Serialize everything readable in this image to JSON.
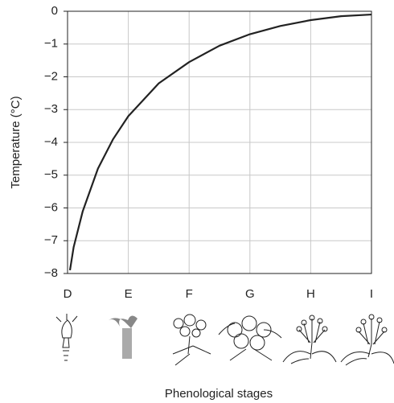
{
  "chart_data": {
    "type": "line",
    "y_label": "Temperature (°C)",
    "x_label": "Phenological stages",
    "x": [
      0.04,
      0.1,
      0.25,
      0.5,
      0.75,
      1,
      1.5,
      2,
      2.5,
      3,
      3.5,
      4,
      4.5,
      5
    ],
    "series": [
      {
        "color": "#222222",
        "values": [
          -7.9,
          -7.2,
          -6.1,
          -4.8,
          -3.9,
          -3.2,
          -2.2,
          -1.55,
          -1.05,
          -0.7,
          -0.45,
          -0.27,
          -0.15,
          -0.1
        ]
      }
    ],
    "xlim": [
      0,
      5
    ],
    "xticks": [
      {
        "value": 0,
        "label": "D"
      },
      {
        "value": 1,
        "label": "E"
      },
      {
        "value": 2,
        "label": "F"
      },
      {
        "value": 3,
        "label": "G"
      },
      {
        "value": 4,
        "label": "H"
      },
      {
        "value": 5,
        "label": "I"
      }
    ],
    "ylim": [
      -8,
      0
    ],
    "yticks": [
      0,
      {
        "value": -1,
        "label": "−1"
      },
      {
        "value": -2,
        "label": "−2"
      },
      {
        "value": -3,
        "label": "−3"
      },
      {
        "value": -4,
        "label": "−4"
      },
      {
        "value": -5,
        "label": "−5"
      },
      {
        "value": -6,
        "label": "−6"
      },
      {
        "value": -7,
        "label": "−7"
      },
      {
        "value": -8,
        "label": "−8"
      }
    ],
    "grid": true
  }
}
